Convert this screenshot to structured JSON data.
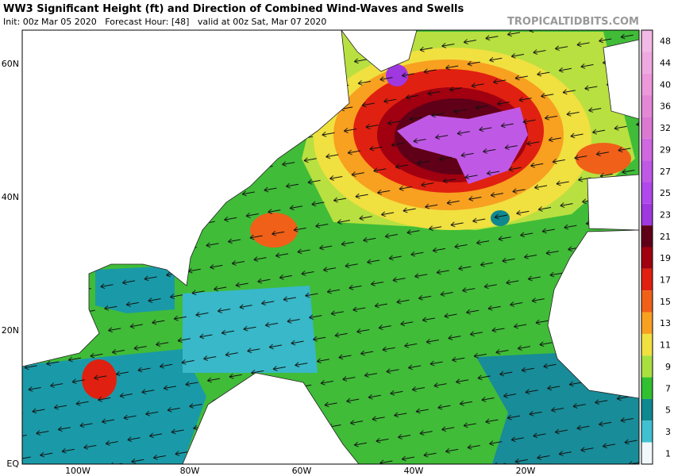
{
  "header": {
    "title": "WW3 Significant Height (ft) and Direction of Combined Wind-Waves and Swells",
    "subtitle": "Init: 00z Mar 05 2020   Forecast Hour: [48]   valid at 00z Sat, Mar 07 2020",
    "watermark": "TROPICALTIDBITS.COM"
  },
  "map": {
    "lat_labels": [
      "60N",
      "40N",
      "20N",
      "EQ"
    ],
    "lon_labels": [
      "100W",
      "80W",
      "60W",
      "40W",
      "20W"
    ]
  },
  "colorbar": [
    {
      "value": 48,
      "color": "#f2b8e6"
    },
    {
      "value": 44,
      "color": "#f0a8e0"
    },
    {
      "value": 40,
      "color": "#ec98da"
    },
    {
      "value": 36,
      "color": "#e488d6"
    },
    {
      "value": 32,
      "color": "#dc78d2"
    },
    {
      "value": 29,
      "color": "#d068e0"
    },
    {
      "value": 27,
      "color": "#c058e6"
    },
    {
      "value": 25,
      "color": "#b048ec"
    },
    {
      "value": 23,
      "color": "#a038e0"
    },
    {
      "value": 21,
      "color": "#600018"
    },
    {
      "value": 19,
      "color": "#a00010"
    },
    {
      "value": 17,
      "color": "#e02010"
    },
    {
      "value": 15,
      "color": "#f06018"
    },
    {
      "value": 13,
      "color": "#f8a020"
    },
    {
      "value": 11,
      "color": "#f0e040"
    },
    {
      "value": 9,
      "color": "#a8e040"
    },
    {
      "value": 7,
      "color": "#30c030"
    },
    {
      "value": 5,
      "color": "#108890"
    },
    {
      "value": 3,
      "color": "#40c0d0"
    },
    {
      "value": 1,
      "color": "#f0f8fc"
    }
  ]
}
